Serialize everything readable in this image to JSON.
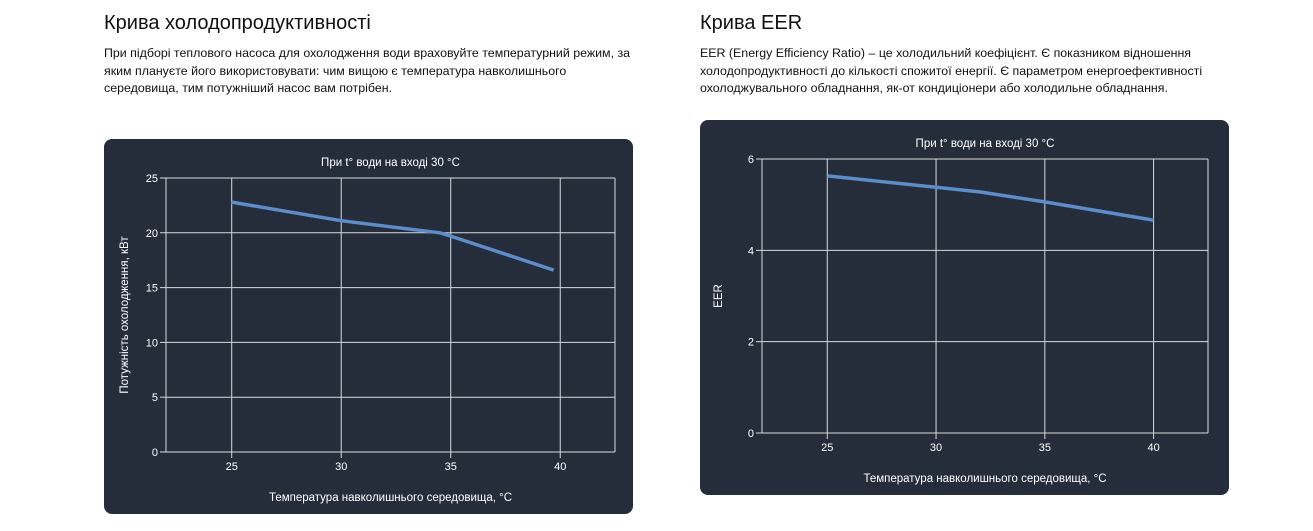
{
  "left_section": {
    "title": "Крива холодопродуктивності",
    "description": "При підборі теплового насоса для охолодження води враховуйте температурний режим, за яким плануєте його використовувати: чим вищою є температура навколишнього середовища, тим потужніший насос вам потрібен."
  },
  "right_section": {
    "title": "Крива EER",
    "description": "EER (Energy Efficiency Ratio) – це холодильний коефіцієнт. Є показником відношення холодопродуктивності до кількості спожитої енергії. Є параметром енергоефективності охолоджувального обладнання, як-от кондиціонери або холодильне обладнання."
  },
  "colors": {
    "card_background": "#252d3b",
    "line": "#5b8ccb",
    "grid": "#d6d9de",
    "text": "#ffffff"
  },
  "chart_data": [
    {
      "type": "line",
      "title": "При t° води на вході 30 °C",
      "xlabel": "Температура навколишнього середовища, °C",
      "ylabel": "Потужність охолодження, кВт",
      "xlim": [
        22,
        42.5
      ],
      "ylim": [
        0,
        25
      ],
      "xticks": [
        25,
        30,
        35,
        40
      ],
      "yticks": [
        0,
        5,
        10,
        15,
        20,
        25
      ],
      "grid": true,
      "series": [
        {
          "name": "cooling-capacity",
          "x": [
            25,
            30,
            34.5,
            35,
            39.7
          ],
          "y": [
            22.8,
            21.1,
            20.0,
            19.7,
            16.6
          ]
        }
      ]
    },
    {
      "type": "line",
      "title": "При t° води на вході 30 °C",
      "xlabel": "Температура навколишнього середовища, °C",
      "ylabel": "EER",
      "xlim": [
        22,
        42.5
      ],
      "ylim": [
        0,
        6
      ],
      "xticks": [
        25,
        30,
        35,
        40
      ],
      "yticks": [
        0,
        2,
        4,
        6
      ],
      "grid": true,
      "series": [
        {
          "name": "eer",
          "x": [
            25,
            30,
            32,
            35,
            40
          ],
          "y": [
            5.63,
            5.38,
            5.28,
            5.06,
            4.66
          ]
        }
      ]
    }
  ]
}
